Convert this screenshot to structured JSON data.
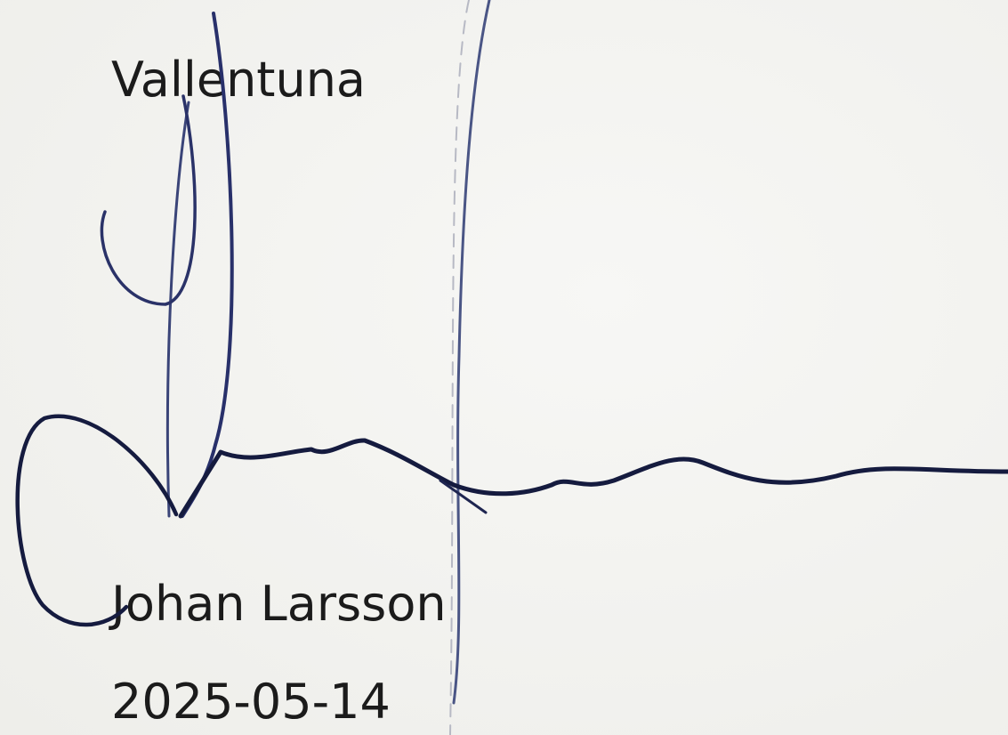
{
  "header": {
    "place": "Vallentuna"
  },
  "signature": {
    "name": "Johan Larsson",
    "date": "2025-05-14"
  }
}
